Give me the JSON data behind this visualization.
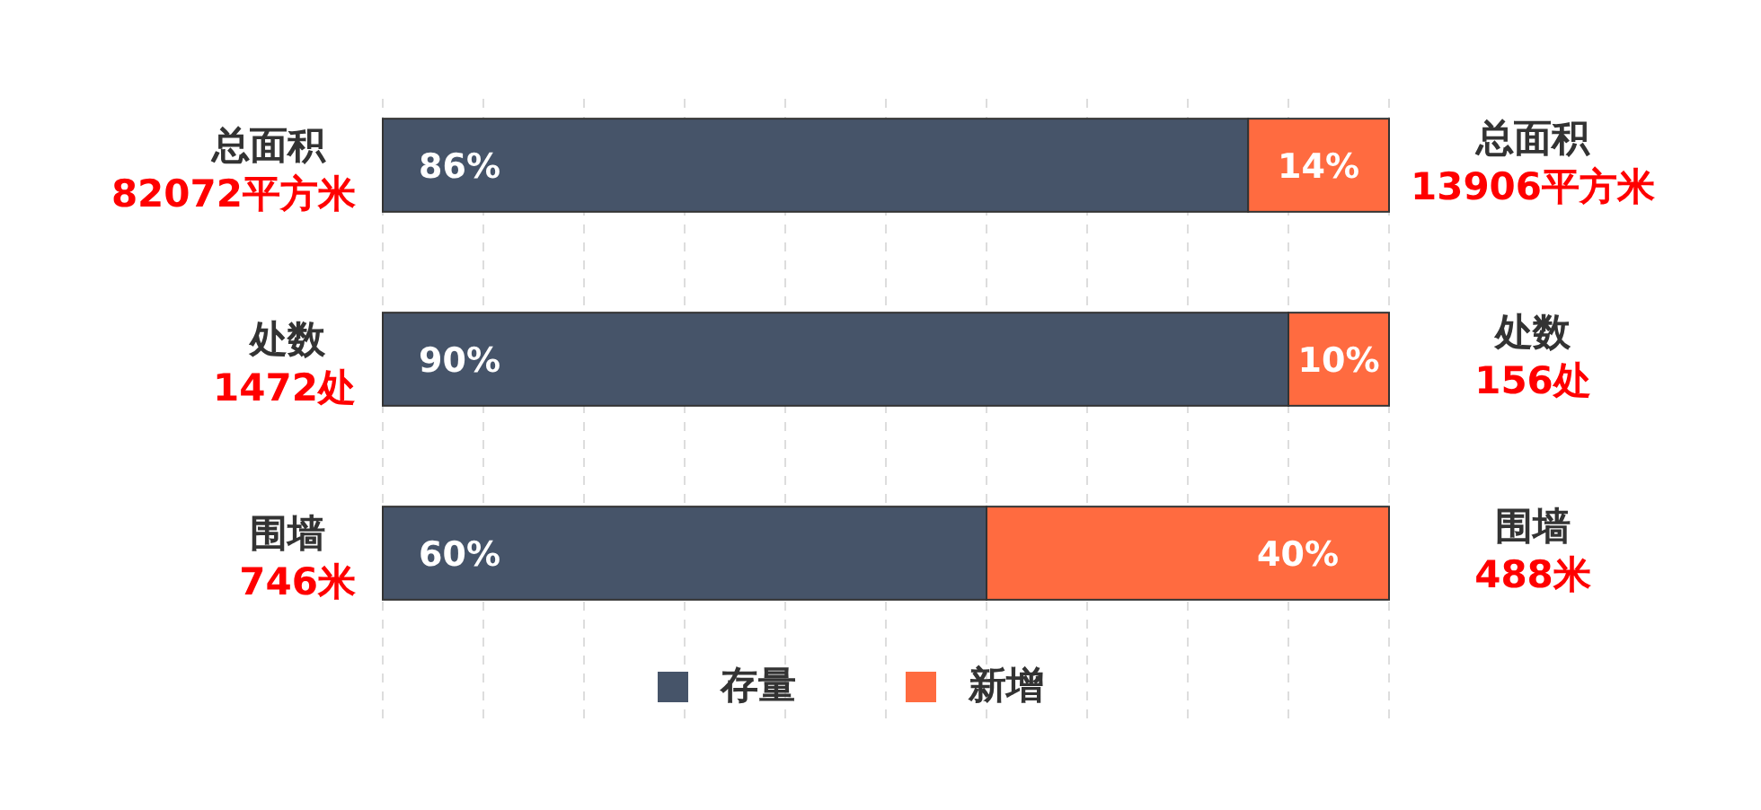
{
  "chart_data": {
    "type": "bar",
    "orientation": "horizontal",
    "stacked": true,
    "categories": [
      "总面积\n82072平方米",
      "处数\n1472处",
      "围墙\n746米"
    ],
    "series": [
      {
        "name": "存量",
        "color": "#465469",
        "values": [
          86,
          90,
          60
        ],
        "value_labels": [
          "86%",
          "90%",
          "60%"
        ]
      },
      {
        "name": "新增",
        "color": "#ff6b40",
        "values": [
          14,
          10,
          40
        ],
        "value_labels": [
          "14%",
          "10%",
          "40%"
        ]
      }
    ],
    "xlim": [
      0,
      100
    ],
    "xticks": [
      {
        "value": 0,
        "label": null
      },
      {
        "value": 10,
        "label": null
      },
      {
        "value": 20,
        "label": null
      },
      {
        "value": 30,
        "label": null
      },
      {
        "value": 40,
        "label": null
      },
      {
        "value": 50,
        "label": null
      },
      {
        "value": 60,
        "label": null
      },
      {
        "value": 70,
        "label": null
      },
      {
        "value": 80,
        "label": null
      },
      {
        "value": 90,
        "label": null
      },
      {
        "value": 100,
        "label": null
      }
    ],
    "tick_labels": "y",
    "grid": "x",
    "legend": "bottom",
    "annotations": [
      "总面积\n13906平方米",
      "处数\n156处",
      "围墙\n488米"
    ]
  }
}
